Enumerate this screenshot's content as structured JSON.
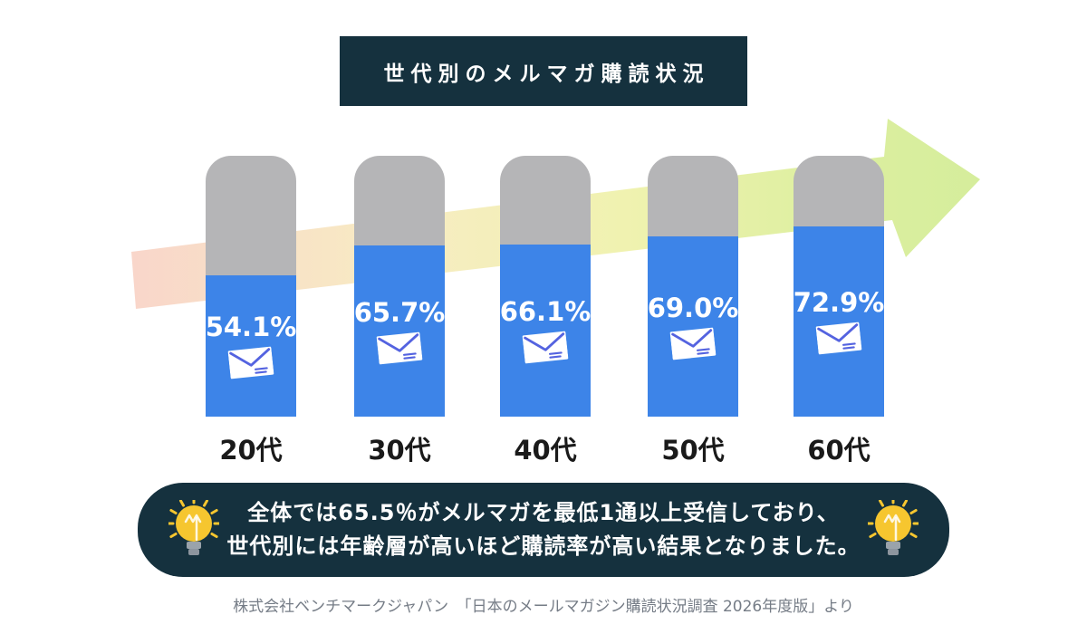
{
  "title": {
    "text": "世代別のメルマガ購読状況"
  },
  "chart_data": {
    "type": "bar",
    "title": "世代別のメルマガ購読状況",
    "categories": [
      "20代",
      "30代",
      "40代",
      "50代",
      "60代"
    ],
    "values": [
      54.1,
      65.7,
      66.1,
      69.0,
      72.9
    ],
    "value_labels": [
      "54.1%",
      "65.7%",
      "66.1%",
      "69.0%",
      "72.9%"
    ],
    "unit": "%",
    "ylim": [
      0,
      100
    ],
    "bar_color": "#3d84e8",
    "bar_track_color": "#b5b5b7",
    "value_label_color": "#ffffff",
    "category_label_color": "#1a1a1a",
    "bar_icon": "envelope-icon",
    "annotation_arrow": {
      "direction": "up-right",
      "gradient": [
        "#f9d6ca",
        "#f7ecc3",
        "#f0f2b0",
        "#d5ed9c"
      ]
    }
  },
  "callout": {
    "line1": "全体では65.5％がメルマガを最低1通以上受信しており、",
    "line2": "世代別には年齢層が高いほど購読率が高い結果となりました。",
    "icon": "lightbulb-icon",
    "bg_color": "#15313e",
    "text_color": "#ffffff"
  },
  "footer": {
    "text": "株式会社ベンチマークジャパン　「日本のメールマガジン購読状況調査 2026年度版」より"
  },
  "colors": {
    "banner_navy": "#15313e",
    "background": "#ffffff",
    "envelope_line": "#5463e0",
    "bulb_yellow": "#f6c62f",
    "bulb_base_gray": "#9aa3ab"
  }
}
